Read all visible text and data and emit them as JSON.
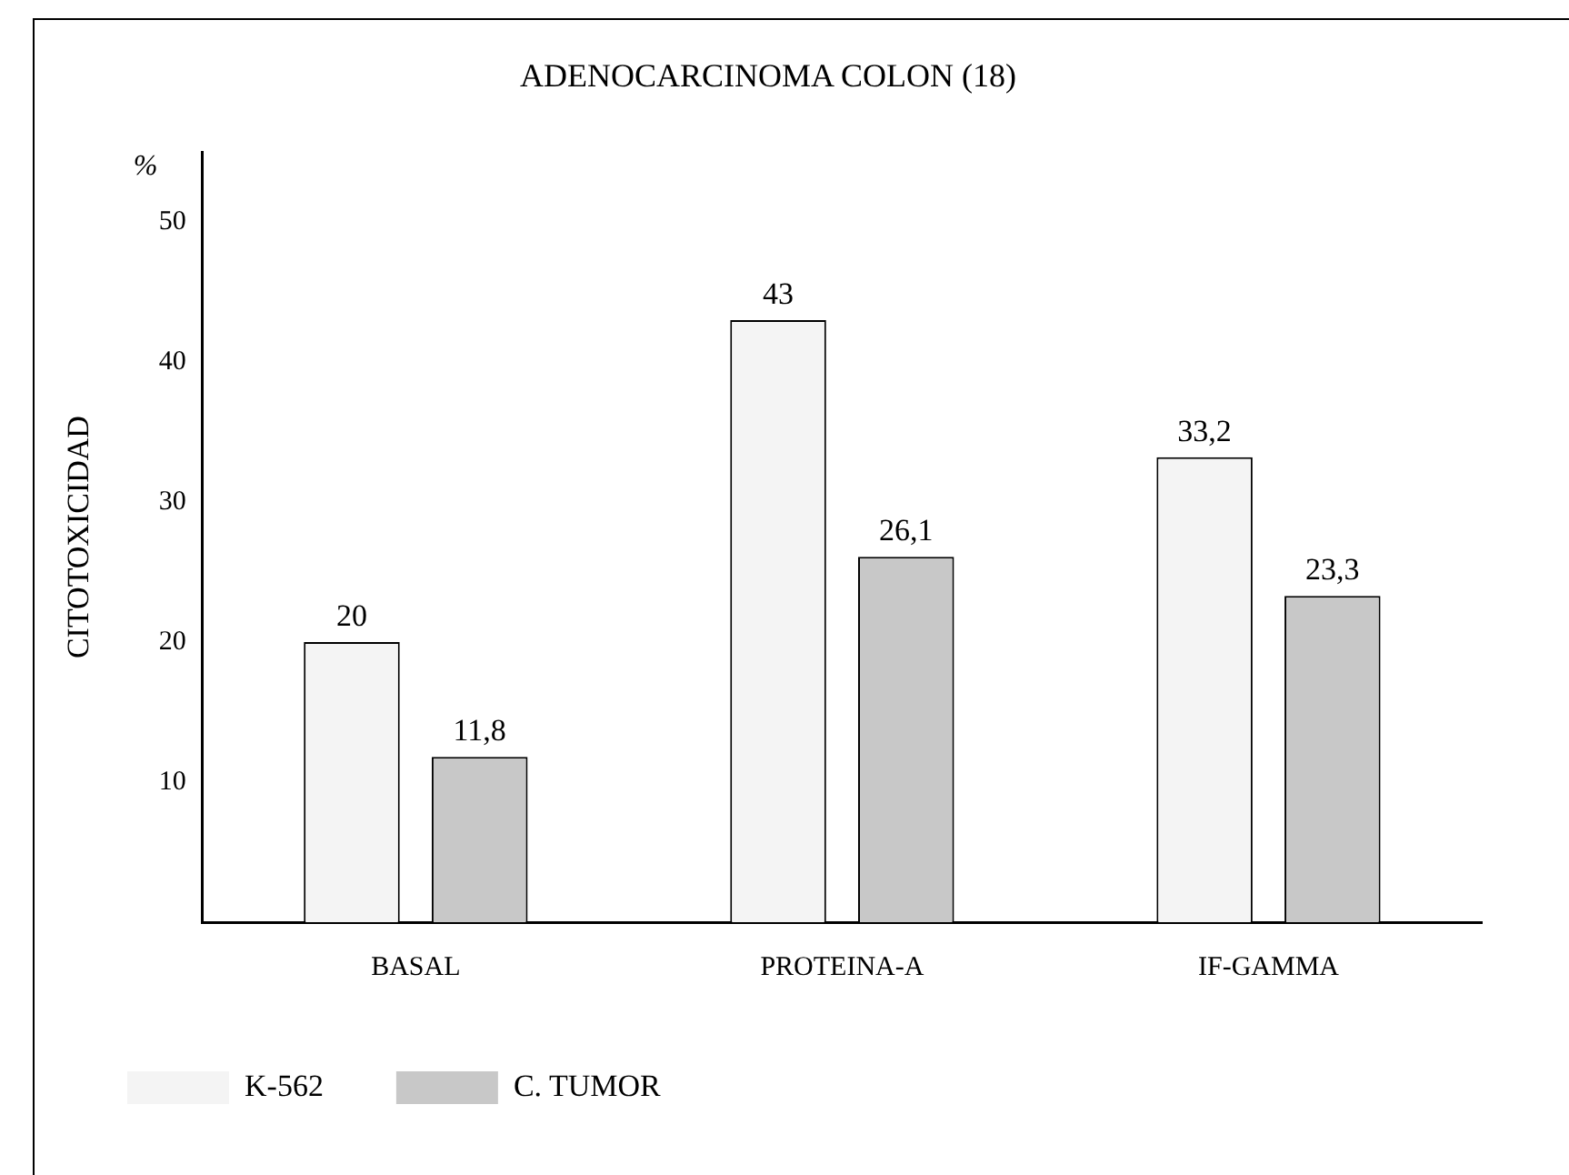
{
  "chart_data": {
    "type": "bar",
    "title": "ADENOCARCINOMA COLON (18)",
    "ylabel": "CITOTOXICIDAD",
    "annotations": [
      "%"
    ],
    "categories": [
      "BASAL",
      "PROTEINA-A",
      "IF-GAMMA"
    ],
    "series": [
      {
        "name": "K-562",
        "color": "#f4f4f4",
        "values": [
          20,
          43,
          33.2
        ],
        "value_labels": [
          "20",
          "43",
          "33,2"
        ]
      },
      {
        "name": "C. TUMOR",
        "color": "#c8c8c8",
        "values": [
          11.8,
          26.1,
          23.3
        ],
        "value_labels": [
          "11,8",
          "26,1",
          "23,3"
        ]
      }
    ],
    "ylim": [
      0,
      55
    ],
    "yticks": [
      10,
      20,
      30,
      40,
      50
    ],
    "grid": false,
    "legend": "bottom left"
  }
}
